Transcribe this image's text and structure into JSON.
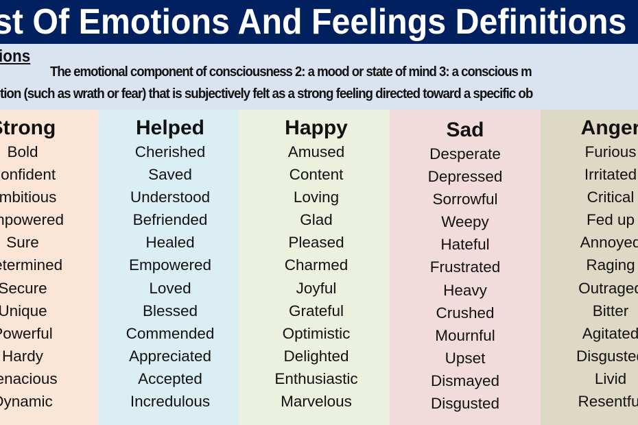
{
  "title": "List Of Emotions And Feelings Definitions",
  "definitions": {
    "heading": "Definitions",
    "line1": "The emotional component of consciousness 2: a mood or state of mind 3: a conscious m",
    "line2": "tion (such as wrath or fear) that is subjectively felt as a strong feeling directed toward a specific ob"
  },
  "columns": [
    {
      "heading": "Strong",
      "color": "#fbe5d6",
      "words": [
        "Bold",
        "Confident",
        "Ambitious",
        "Empowered",
        "Sure",
        "Determined",
        "Secure",
        "Unique",
        "Powerful",
        "Hardy",
        "Tenacious",
        "Dynamic"
      ]
    },
    {
      "heading": "Helped",
      "color": "#daeef3",
      "words": [
        "Cherished",
        "Saved",
        "Understood",
        "Befriended",
        "Healed",
        "Empowered",
        "Loved",
        "Blessed",
        "Commended",
        "Appreciated",
        "Accepted",
        "Incredulous"
      ]
    },
    {
      "heading": "Happy",
      "color": "#ebf1de",
      "words": [
        "Amused",
        "Content",
        "Loving",
        "Glad",
        "Pleased",
        "Charmed",
        "Joyful",
        "Grateful",
        "Optimistic",
        "Delighted",
        "Enthusiastic",
        "Marvelous"
      ]
    },
    {
      "heading": "Sad",
      "color": "#f2dcdb",
      "words": [
        "Desperate",
        "Depressed",
        "Sorrowful",
        "Weepy",
        "Hateful",
        "Frustrated",
        "Heavy",
        "Crushed",
        "Mournful",
        "Upset",
        "Dismayed",
        "Disgusted"
      ]
    },
    {
      "heading": "Anger",
      "color": "#ddd9c4",
      "words": [
        "Furious",
        "Irritated",
        "Critical",
        "Fed up",
        "Annoyed",
        "Raging",
        "Outraged",
        "Bitter",
        "Agitated",
        "Disgusted",
        "Livid",
        "Resentful"
      ]
    }
  ]
}
